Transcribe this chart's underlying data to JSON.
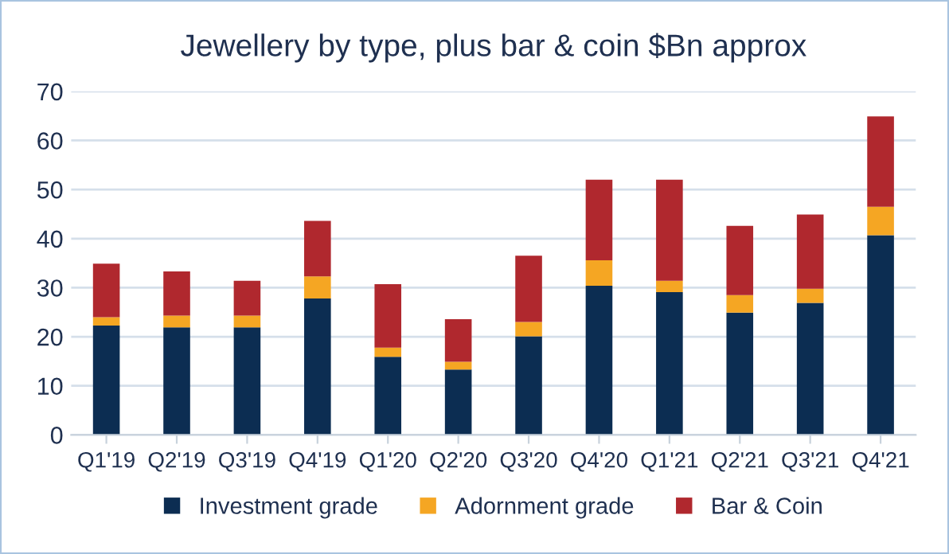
{
  "chart_data": {
    "type": "bar",
    "title": "Jewellery by type, plus bar & coin $Bn approx",
    "categories": [
      "Q1'19",
      "Q2'19",
      "Q3'19",
      "Q4'19",
      "Q1'20",
      "Q2'20",
      "Q3'20",
      "Q4'20",
      "Q1'21",
      "Q2'21",
      "Q3'21",
      "Q4'21"
    ],
    "stacked": true,
    "series": [
      {
        "name": "Investment grade",
        "color": "#0c2d52",
        "values": [
          22.3,
          21.9,
          21.9,
          27.8,
          15.9,
          13.3,
          20.1,
          30.4,
          29.1,
          24.9,
          26.9,
          40.7
        ]
      },
      {
        "name": "Adornment grade",
        "color": "#f5a623",
        "values": [
          1.7,
          2.4,
          2.4,
          4.5,
          1.9,
          1.6,
          2.9,
          5.2,
          2.3,
          3.6,
          2.9,
          5.8
        ]
      },
      {
        "name": "Bar & Coin",
        "color": "#b0282e",
        "values": [
          10.9,
          9.0,
          7.1,
          11.3,
          12.9,
          8.7,
          13.5,
          16.4,
          20.6,
          14.1,
          15.1,
          18.4
        ]
      }
    ],
    "ylim": [
      0,
      70
    ],
    "yticks": [
      0,
      10,
      20,
      30,
      40,
      50,
      60,
      70
    ],
    "grid": "y",
    "legend": "bottom"
  }
}
